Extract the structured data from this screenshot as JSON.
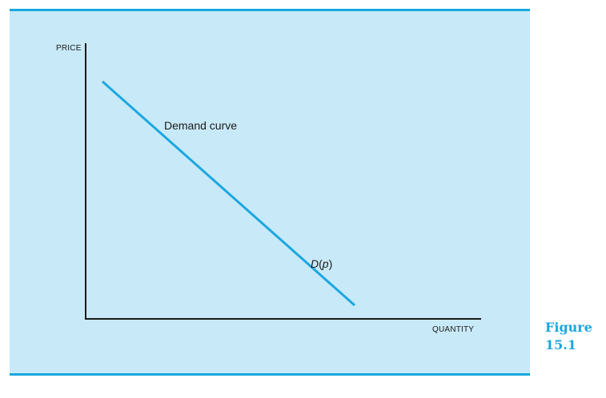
{
  "diagram": {
    "y_axis_label": "PRICE",
    "x_axis_label": "QUANTITY",
    "curve_label": "Demand curve",
    "function_label": {
      "name": "D",
      "open": "(",
      "arg": "p",
      "close": ")"
    },
    "curve_slope": "downward-sloping straight line"
  },
  "caption": {
    "word": "Figure",
    "number": "15.1"
  },
  "colors": {
    "panel_background": "#c8e9f8",
    "rule": "#1aa7df",
    "curve": "#1aa7df",
    "axes": "#1a1a1a",
    "text": "#1a1a1a",
    "caption": "#1aa7df"
  }
}
